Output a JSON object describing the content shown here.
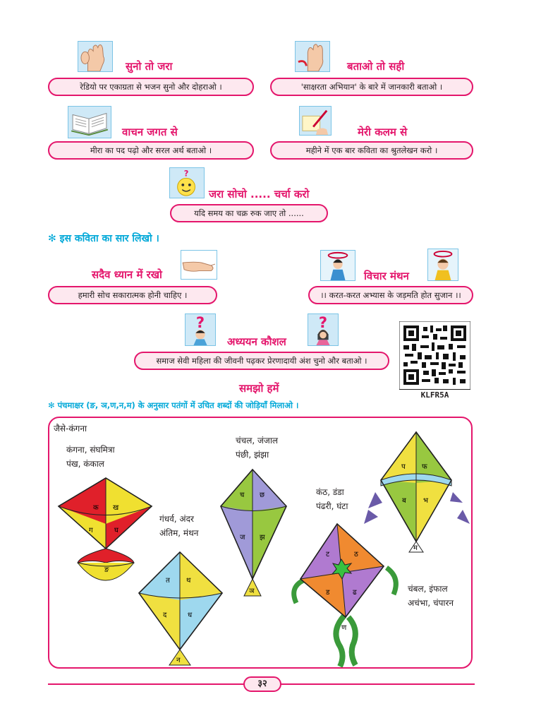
{
  "sections": {
    "listen": {
      "title": "सुनो तो जरा",
      "text": "रेडियो पर एकाग्रता से भजन सुनो और दोहराओ ।"
    },
    "tell": {
      "title": "बताओ तो सही",
      "text": "'साक्षरता अभियान' के बारे में जानकारी बताओ ।"
    },
    "read": {
      "title": "वाचन जगत से",
      "text": "मीरा का पद पढ़ो और सरल अर्थ बताओ ।"
    },
    "pen": {
      "title": "मेरी कलम से",
      "text": "महीने में एक बार कविता का श्रुतलेखन करो ।"
    },
    "think": {
      "title": "जरा सोचो ..... चर्चा करो",
      "text": "यदि समय का चक्र रुक जाए तो ......"
    },
    "summary": "✻ इस कविता का सार लिखो ।",
    "remember": {
      "title": "सदैव ध्यान में रखो",
      "text": "हमारी सोच सकारात्मक होनी चाहिए ।"
    },
    "brainstorm": {
      "title": "विचार मंथन",
      "text": "।। करत-करत अभ्यास के जड़मति होत सुजान ।।"
    },
    "study": {
      "title": "अध्ययन कौशल",
      "text": "समाज सेवी महिला की जीवनी पढ़कर प्रेरणादायी अंश चुनो और बताओ ।"
    },
    "understand": {
      "title": "समझो हमें"
    },
    "instruction": "✻ पंचमाक्षर (ङ, ञ,ण,न,म) के अनुसार पतंगों में उचित शब्दों की जोड़ियाँ मिलाओ ।"
  },
  "qr": {
    "code": "KLFR5A"
  },
  "kites_box": {
    "example": "जैसे-कंगना",
    "groups": [
      {
        "line1": "कंगना, संघमित्रा",
        "line2": "पंख, कंकाल"
      },
      {
        "line1": "गंधर्व, अंदर",
        "line2": "अंतिम, मंथन"
      },
      {
        "line1": "चंचल, जंजाल",
        "line2": "पंछी, झंझा"
      },
      {
        "line1": "कंठ, डंडा",
        "line2": "पंढरी, घंटा"
      },
      {
        "line1": "चंबल, इंफाल",
        "line2": "अचंभा, चंपारन"
      }
    ],
    "kites": [
      {
        "letters": [
          "क",
          "ख",
          "ग",
          "घ"
        ],
        "tail": "ङ"
      },
      {
        "letters": [
          "त",
          "थ",
          "द",
          "ध"
        ],
        "tail": "न"
      },
      {
        "letters": [
          "च",
          "छ",
          "ज",
          "झ"
        ],
        "tail": "ञ"
      },
      {
        "letters": [
          "ट",
          "ठ",
          "ड",
          "ढ"
        ],
        "tail": "ण"
      },
      {
        "letters": [
          "प",
          "फ",
          "ब",
          "भ"
        ],
        "tail": "म"
      }
    ]
  },
  "page_number": "३२",
  "colors": {
    "accent": "#e4166c",
    "pill_bg": "#fde8ef",
    "cyan": "#00a8d8"
  }
}
